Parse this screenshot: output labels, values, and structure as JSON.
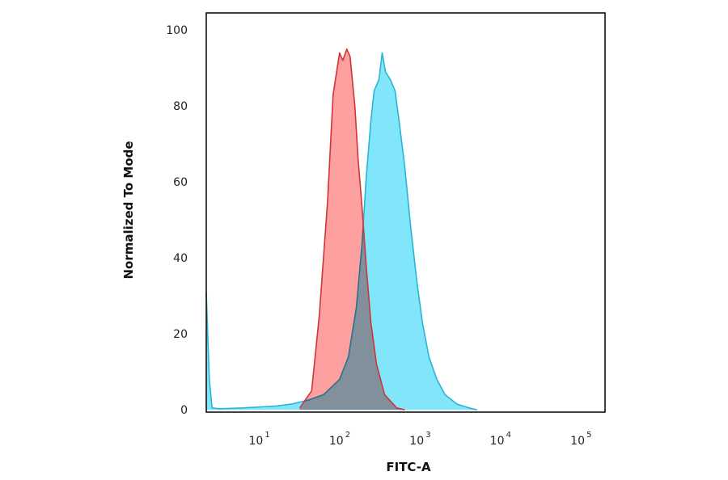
{
  "chart_data": {
    "type": "area",
    "title": "",
    "xlabel": "FITC-A",
    "ylabel": "Normalized To Mode",
    "x_scale": "log",
    "xlim": [
      2.2,
      200000
    ],
    "ylim": [
      -0.6,
      104.5
    ],
    "grid": false,
    "x_ticks": [
      {
        "base": "10",
        "exp": "1",
        "value": 10
      },
      {
        "base": "10",
        "exp": "2",
        "value": 100
      },
      {
        "base": "10",
        "exp": "3",
        "value": 1000
      },
      {
        "base": "10",
        "exp": "4",
        "value": 10000
      },
      {
        "base": "10",
        "exp": "5",
        "value": 100000
      }
    ],
    "y_ticks": [
      "0",
      "20",
      "40",
      "60",
      "80",
      "100"
    ],
    "series": [
      {
        "fill": "#82e6fa",
        "stroke": "#2ab4d6",
        "x": [
          2.2,
          2.4,
          2.6,
          3.2,
          6.3,
          16,
          25,
          40,
          63,
          100,
          129,
          162,
          191,
          214,
          245,
          269,
          309,
          339,
          372,
          427,
          490,
          550,
          646,
          759,
          912,
          1072,
          1288,
          1622,
          2042,
          2884,
          4074,
          5129
        ],
        "y": [
          31,
          8,
          0.5,
          0.3,
          0.5,
          1,
          1.5,
          2.5,
          4,
          8,
          14,
          27,
          44,
          61,
          76,
          84,
          87,
          94,
          89,
          87,
          84,
          76,
          64,
          49,
          34,
          23,
          14,
          8,
          4,
          1.5,
          0.5,
          0
        ]
      },
      {
        "fill": "#ffa0a0",
        "stroke": "#d03434",
        "x": [
          32,
          45,
          56,
          71,
          83,
          100,
          110,
          123,
          135,
          155,
          170,
          191,
          214,
          245,
          288,
          363,
          513,
          646
        ],
        "y": [
          0.5,
          5,
          25,
          55,
          83,
          94,
          92,
          95,
          93,
          80,
          66,
          53,
          38,
          23,
          12,
          4,
          0.5,
          0
        ]
      }
    ]
  }
}
